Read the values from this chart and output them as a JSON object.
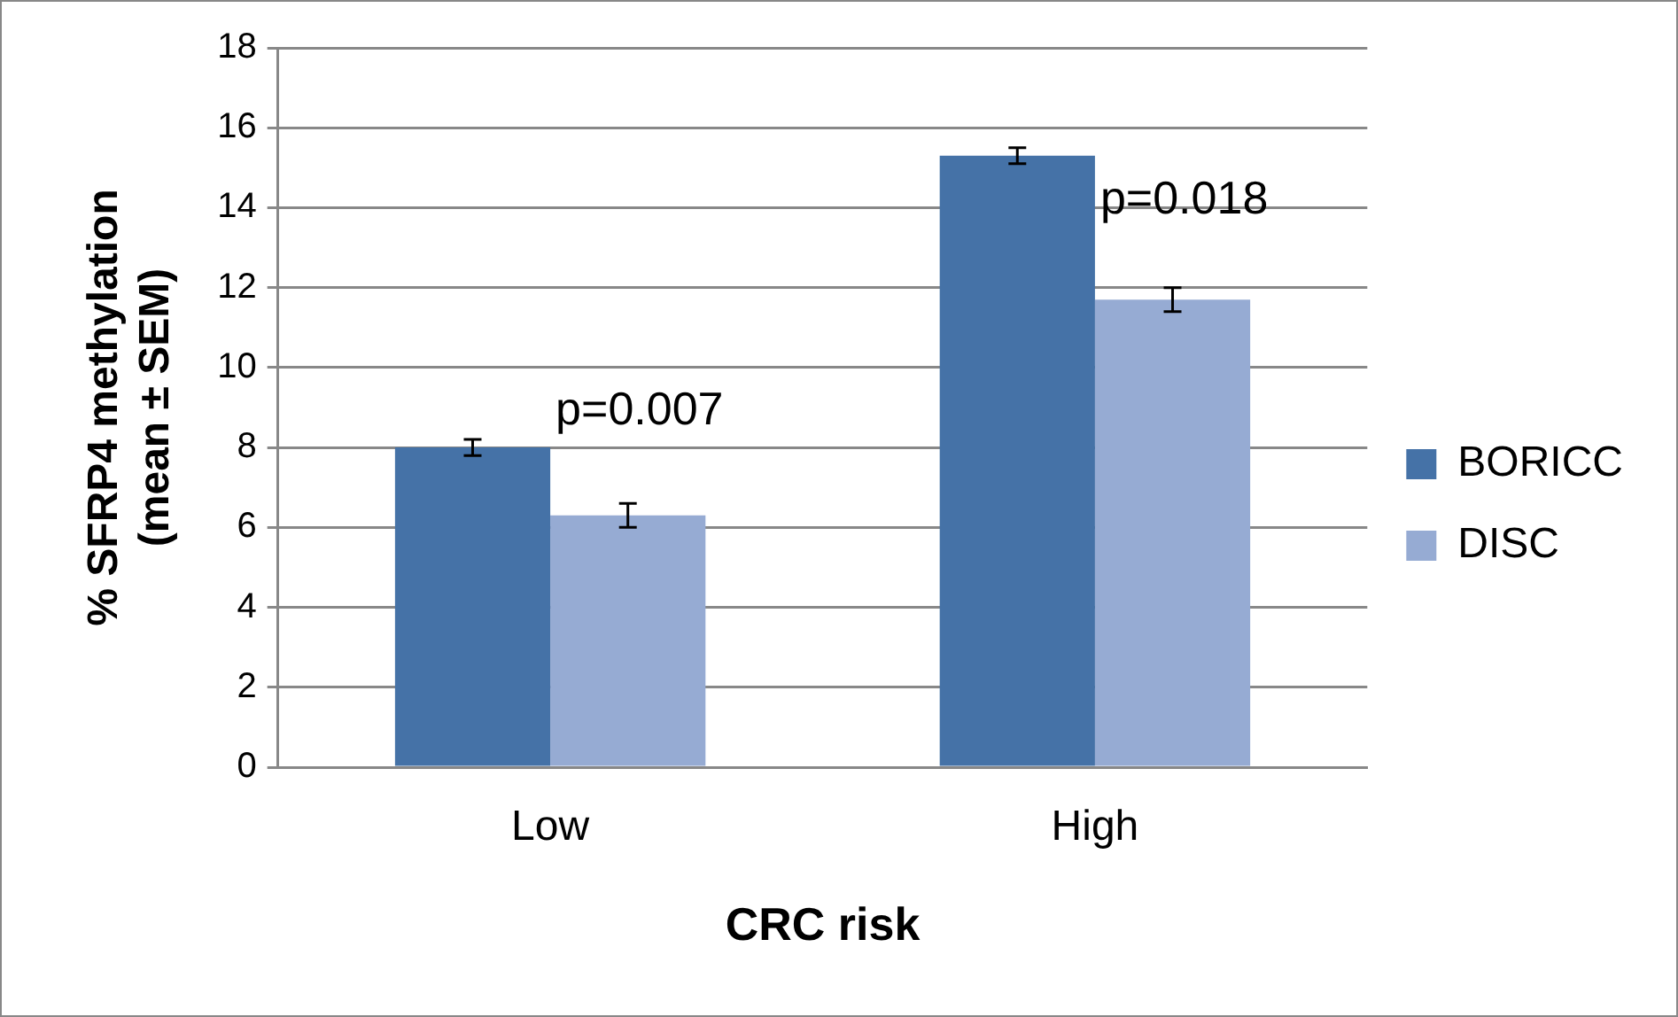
{
  "chart_data": {
    "type": "bar",
    "xlabel": "CRC risk",
    "ylabel": "% SFRP4 methylation\n(mean ± SEM)",
    "categories": [
      "Low",
      "High"
    ],
    "series": [
      {
        "name": "BORICC",
        "color": "#4572a7",
        "values": [
          8.0,
          15.3
        ],
        "errors": [
          0.2,
          0.2
        ]
      },
      {
        "name": "DISC",
        "color": "#96abd3",
        "values": [
          6.3,
          11.7
        ],
        "errors": [
          0.3,
          0.3
        ]
      }
    ],
    "ylim": [
      0,
      18
    ],
    "yticks": [
      0,
      2,
      4,
      6,
      8,
      10,
      12,
      14,
      16,
      18
    ],
    "grid": "y",
    "legend": "right",
    "annotations": [
      "p=0.007",
      "p=0.018"
    ]
  }
}
